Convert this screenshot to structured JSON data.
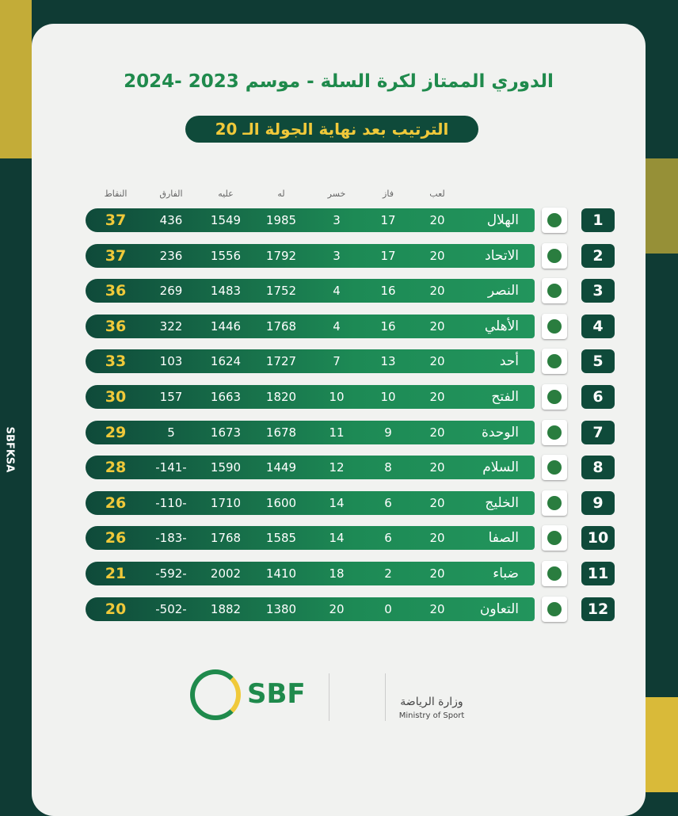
{
  "header": {
    "title": "الدوري الممتاز لكرة السلة - موسم 2023 -2024",
    "subtitle": "الترتيب بعد نهاية الجولة الـ 20"
  },
  "table": {
    "columns": [
      "لعب",
      "فاز",
      "خسر",
      "له",
      "عليه",
      "الفارق",
      "النقاط"
    ],
    "rows": [
      [
        1,
        "الهلال",
        20,
        17,
        3,
        1985,
        1549,
        436,
        37
      ],
      [
        2,
        "الاتحاد",
        20,
        17,
        3,
        1792,
        1556,
        236,
        37
      ],
      [
        3,
        "النصر",
        20,
        16,
        4,
        1752,
        1483,
        269,
        36
      ],
      [
        4,
        "الأهلي",
        20,
        16,
        4,
        1768,
        1446,
        322,
        36
      ],
      [
        5,
        "أحد",
        20,
        13,
        7,
        1727,
        1624,
        103,
        33
      ],
      [
        6,
        "الفتح",
        20,
        10,
        10,
        1820,
        1663,
        157,
        30
      ],
      [
        7,
        "الوحدة",
        20,
        9,
        11,
        1678,
        1673,
        5,
        29
      ],
      [
        8,
        "السلام",
        20,
        8,
        12,
        1449,
        1590,
        "-141-",
        28
      ],
      [
        9,
        "الخليج",
        20,
        6,
        14,
        1600,
        1710,
        "-110-",
        26
      ],
      [
        10,
        "الصفا",
        20,
        6,
        14,
        1585,
        1768,
        "-183-",
        26
      ],
      [
        11,
        "ضباء",
        20,
        2,
        18,
        1410,
        2002,
        "-592-",
        21
      ],
      [
        12,
        "التعاون",
        20,
        0,
        20,
        1380,
        1882,
        "-502-",
        20
      ]
    ]
  },
  "footer": {
    "sbf": "SBF",
    "ministry_ar": "وزارة الرياضة",
    "ministry_en": "Ministry of Sport",
    "handle": "SBFKSA"
  }
}
